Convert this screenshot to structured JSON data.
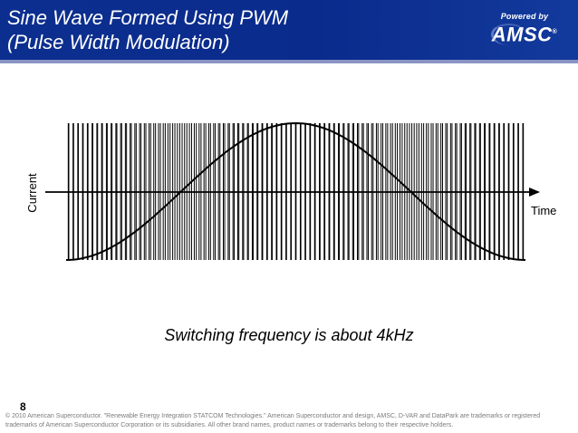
{
  "header": {
    "title_line1": "Sine Wave Formed Using PWM",
    "title_line2": "(Pulse Width Modulation)",
    "colors": {
      "background": "#0c2f8f",
      "stripe": "#8a94c4",
      "text": "#ffffff"
    }
  },
  "logo": {
    "powered_by": "Powered by",
    "brand": "AMSC",
    "reg_mark": "®"
  },
  "diagram": {
    "y_label": "Current",
    "x_label": "Time",
    "pulse_count": 96,
    "waveform": "half-sine rising from minimum to maximum and back",
    "colors": {
      "pulses": "#000000",
      "curve": "#000000",
      "axis": "#000000"
    }
  },
  "caption": "Switching frequency is about 4kHz",
  "page_number": "8",
  "footer": "© 2010 American Superconductor. \"Renewable Energy Integration STATCOM Technologies.\" American Superconductor and design, AMSC, D-VAR and DataPark are trademarks or registered trademarks of American Superconductor Corporation or its subsidiaries. All other brand names, product names or trademarks belong to their respective holders."
}
